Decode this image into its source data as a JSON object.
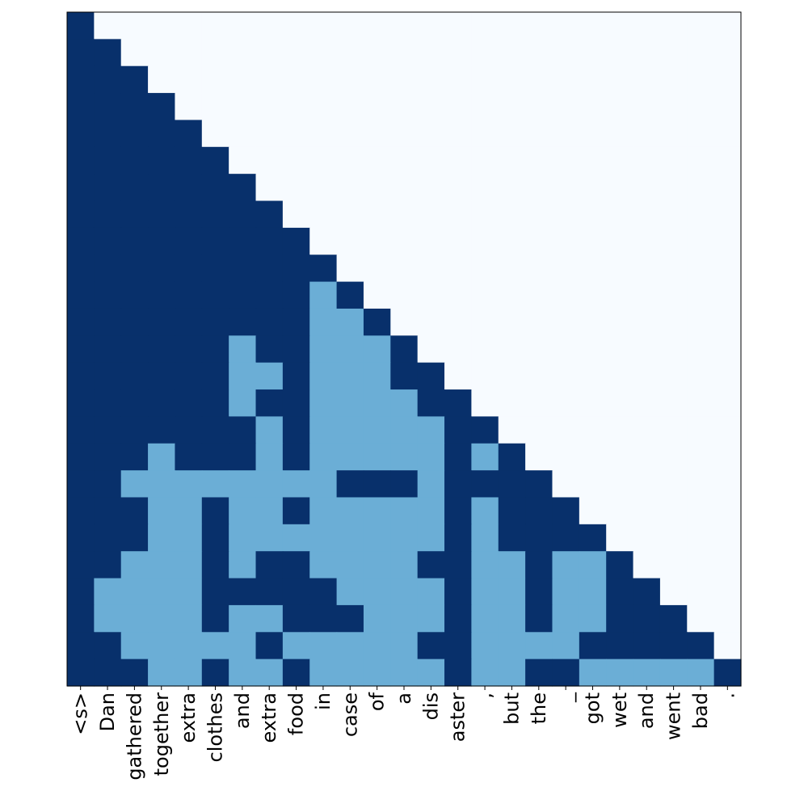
{
  "chart_data": {
    "type": "heatmap",
    "title": "",
    "xlabel": "",
    "ylabel": "",
    "x_tick_labels": [
      "<s>",
      "Dan",
      "gathered",
      "together",
      "extra",
      "clothes",
      "and",
      "extra",
      "food",
      "in",
      "case",
      "of",
      "a",
      "dis",
      "aster",
      ",",
      "but",
      "the",
      "_",
      "got",
      "wet",
      "and",
      "went",
      "bad",
      "."
    ],
    "y_ticks_shown": false,
    "grid": false,
    "colormap": "Blues",
    "color_values": {
      "0": "#f7fbff",
      "1": "#6baed6",
      "2": "#08306b"
    },
    "matrix": [
      [
        2,
        0,
        0,
        0,
        0,
        0,
        0,
        0,
        0,
        0,
        0,
        0,
        0,
        0,
        0,
        0,
        0,
        0,
        0,
        0,
        0,
        0,
        0,
        0,
        0
      ],
      [
        2,
        2,
        0,
        0,
        0,
        0,
        0,
        0,
        0,
        0,
        0,
        0,
        0,
        0,
        0,
        0,
        0,
        0,
        0,
        0,
        0,
        0,
        0,
        0,
        0
      ],
      [
        2,
        2,
        2,
        0,
        0,
        0,
        0,
        0,
        0,
        0,
        0,
        0,
        0,
        0,
        0,
        0,
        0,
        0,
        0,
        0,
        0,
        0,
        0,
        0,
        0
      ],
      [
        2,
        2,
        2,
        2,
        0,
        0,
        0,
        0,
        0,
        0,
        0,
        0,
        0,
        0,
        0,
        0,
        0,
        0,
        0,
        0,
        0,
        0,
        0,
        0,
        0
      ],
      [
        2,
        2,
        2,
        2,
        2,
        0,
        0,
        0,
        0,
        0,
        0,
        0,
        0,
        0,
        0,
        0,
        0,
        0,
        0,
        0,
        0,
        0,
        0,
        0,
        0
      ],
      [
        2,
        2,
        2,
        2,
        2,
        2,
        0,
        0,
        0,
        0,
        0,
        0,
        0,
        0,
        0,
        0,
        0,
        0,
        0,
        0,
        0,
        0,
        0,
        0,
        0
      ],
      [
        2,
        2,
        2,
        2,
        2,
        2,
        2,
        0,
        0,
        0,
        0,
        0,
        0,
        0,
        0,
        0,
        0,
        0,
        0,
        0,
        0,
        0,
        0,
        0,
        0
      ],
      [
        2,
        2,
        2,
        2,
        2,
        2,
        2,
        2,
        0,
        0,
        0,
        0,
        0,
        0,
        0,
        0,
        0,
        0,
        0,
        0,
        0,
        0,
        0,
        0,
        0
      ],
      [
        2,
        2,
        2,
        2,
        2,
        2,
        2,
        2,
        2,
        0,
        0,
        0,
        0,
        0,
        0,
        0,
        0,
        0,
        0,
        0,
        0,
        0,
        0,
        0,
        0
      ],
      [
        2,
        2,
        2,
        2,
        2,
        2,
        2,
        2,
        2,
        2,
        0,
        0,
        0,
        0,
        0,
        0,
        0,
        0,
        0,
        0,
        0,
        0,
        0,
        0,
        0
      ],
      [
        2,
        2,
        2,
        2,
        2,
        2,
        2,
        2,
        2,
        1,
        2,
        0,
        0,
        0,
        0,
        0,
        0,
        0,
        0,
        0,
        0,
        0,
        0,
        0,
        0
      ],
      [
        2,
        2,
        2,
        2,
        2,
        2,
        2,
        2,
        2,
        1,
        1,
        2,
        0,
        0,
        0,
        0,
        0,
        0,
        0,
        0,
        0,
        0,
        0,
        0,
        0
      ],
      [
        2,
        2,
        2,
        2,
        2,
        2,
        1,
        2,
        2,
        1,
        1,
        1,
        2,
        0,
        0,
        0,
        0,
        0,
        0,
        0,
        0,
        0,
        0,
        0,
        0
      ],
      [
        2,
        2,
        2,
        2,
        2,
        2,
        1,
        1,
        2,
        1,
        1,
        1,
        2,
        2,
        0,
        0,
        0,
        0,
        0,
        0,
        0,
        0,
        0,
        0,
        0
      ],
      [
        2,
        2,
        2,
        2,
        2,
        2,
        1,
        2,
        2,
        1,
        1,
        1,
        1,
        2,
        2,
        0,
        0,
        0,
        0,
        0,
        0,
        0,
        0,
        0,
        0
      ],
      [
        2,
        2,
        2,
        2,
        2,
        2,
        2,
        1,
        2,
        1,
        1,
        1,
        1,
        1,
        2,
        2,
        0,
        0,
        0,
        0,
        0,
        0,
        0,
        0,
        0
      ],
      [
        2,
        2,
        2,
        1,
        2,
        2,
        2,
        1,
        2,
        1,
        1,
        1,
        1,
        1,
        2,
        1,
        2,
        0,
        0,
        0,
        0,
        0,
        0,
        0,
        0
      ],
      [
        2,
        2,
        1,
        1,
        1,
        1,
        1,
        1,
        1,
        1,
        2,
        2,
        2,
        1,
        2,
        2,
        2,
        2,
        0,
        0,
        0,
        0,
        0,
        0,
        0
      ],
      [
        2,
        2,
        2,
        1,
        1,
        2,
        1,
        1,
        2,
        1,
        1,
        1,
        1,
        1,
        2,
        1,
        2,
        2,
        2,
        0,
        0,
        0,
        0,
        0,
        0
      ],
      [
        2,
        2,
        2,
        1,
        1,
        2,
        1,
        1,
        1,
        1,
        1,
        1,
        1,
        1,
        2,
        1,
        2,
        2,
        2,
        2,
        0,
        0,
        0,
        0,
        0
      ],
      [
        2,
        2,
        1,
        1,
        1,
        2,
        1,
        2,
        2,
        1,
        1,
        1,
        1,
        2,
        2,
        1,
        1,
        2,
        1,
        1,
        2,
        0,
        0,
        0,
        0
      ],
      [
        2,
        1,
        1,
        1,
        1,
        2,
        2,
        2,
        2,
        2,
        1,
        1,
        1,
        1,
        2,
        1,
        1,
        2,
        1,
        1,
        2,
        2,
        0,
        0,
        0
      ],
      [
        2,
        1,
        1,
        1,
        1,
        2,
        1,
        1,
        2,
        2,
        2,
        1,
        1,
        1,
        2,
        1,
        1,
        2,
        1,
        1,
        2,
        2,
        2,
        0,
        0
      ],
      [
        2,
        2,
        1,
        1,
        1,
        1,
        1,
        2,
        1,
        1,
        1,
        1,
        1,
        2,
        2,
        1,
        1,
        1,
        1,
        2,
        2,
        2,
        2,
        2,
        0
      ],
      [
        2,
        2,
        2,
        1,
        1,
        2,
        1,
        1,
        2,
        1,
        1,
        1,
        1,
        1,
        2,
        1,
        1,
        2,
        2,
        1,
        1,
        1,
        1,
        1,
        2
      ]
    ]
  }
}
